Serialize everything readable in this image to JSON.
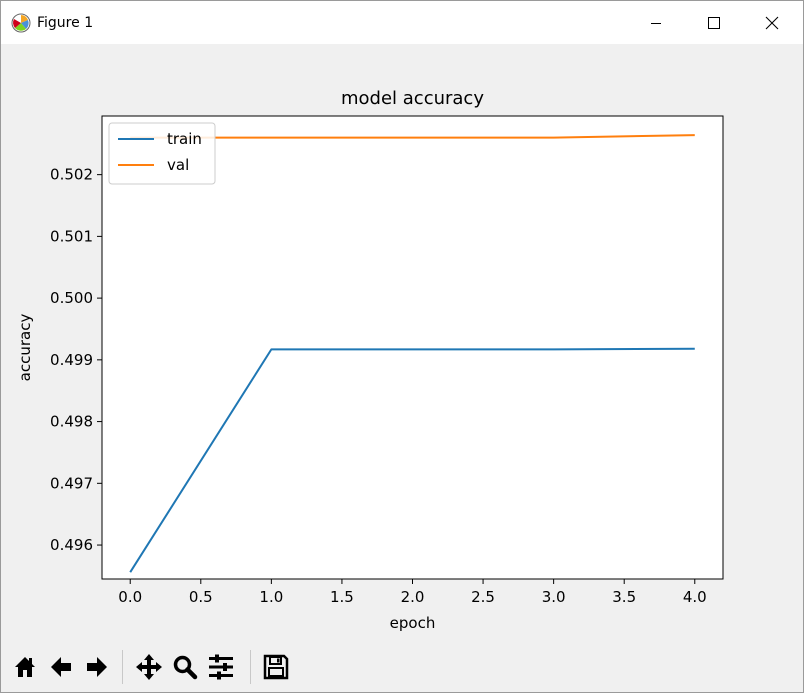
{
  "window": {
    "title": "Figure 1"
  },
  "toolbar": {
    "buttons": [
      {
        "name": "home-button",
        "icon": "home-icon"
      },
      {
        "name": "back-button",
        "icon": "arrow-left-icon"
      },
      {
        "name": "forward-button",
        "icon": "arrow-right-icon"
      },
      {
        "name": "pan-button",
        "icon": "move-icon"
      },
      {
        "name": "zoom-button",
        "icon": "magnifier-icon"
      },
      {
        "name": "configure-subplots-button",
        "icon": "sliders-icon"
      },
      {
        "name": "save-button",
        "icon": "floppy-disk-icon"
      }
    ]
  },
  "chart_data": {
    "type": "line",
    "title": "model accuracy",
    "xlabel": "epoch",
    "ylabel": "accuracy",
    "xlim": [
      -0.2,
      4.2
    ],
    "ylim": [
      0.49545,
      0.50295
    ],
    "xticks": [
      0.0,
      0.5,
      1.0,
      1.5,
      2.0,
      2.5,
      3.0,
      3.5,
      4.0
    ],
    "xtick_labels": [
      "0.0",
      "0.5",
      "1.0",
      "1.5",
      "2.0",
      "2.5",
      "3.0",
      "3.5",
      "4.0"
    ],
    "yticks": [
      0.496,
      0.497,
      0.498,
      0.499,
      0.5,
      0.501,
      0.502
    ],
    "ytick_labels": [
      "0.496",
      "0.497",
      "0.498",
      "0.499",
      "0.500",
      "0.501",
      "0.502"
    ],
    "x": [
      0,
      1,
      2,
      3,
      4
    ],
    "series": [
      {
        "name": "train",
        "color": "#1f77b4",
        "values": [
          0.49556,
          0.49917,
          0.49917,
          0.49917,
          0.49918
        ]
      },
      {
        "name": "val",
        "color": "#ff7f0e",
        "values": [
          0.5026,
          0.5026,
          0.5026,
          0.5026,
          0.50264
        ]
      }
    ],
    "legend_position": "upper left",
    "grid": false
  }
}
